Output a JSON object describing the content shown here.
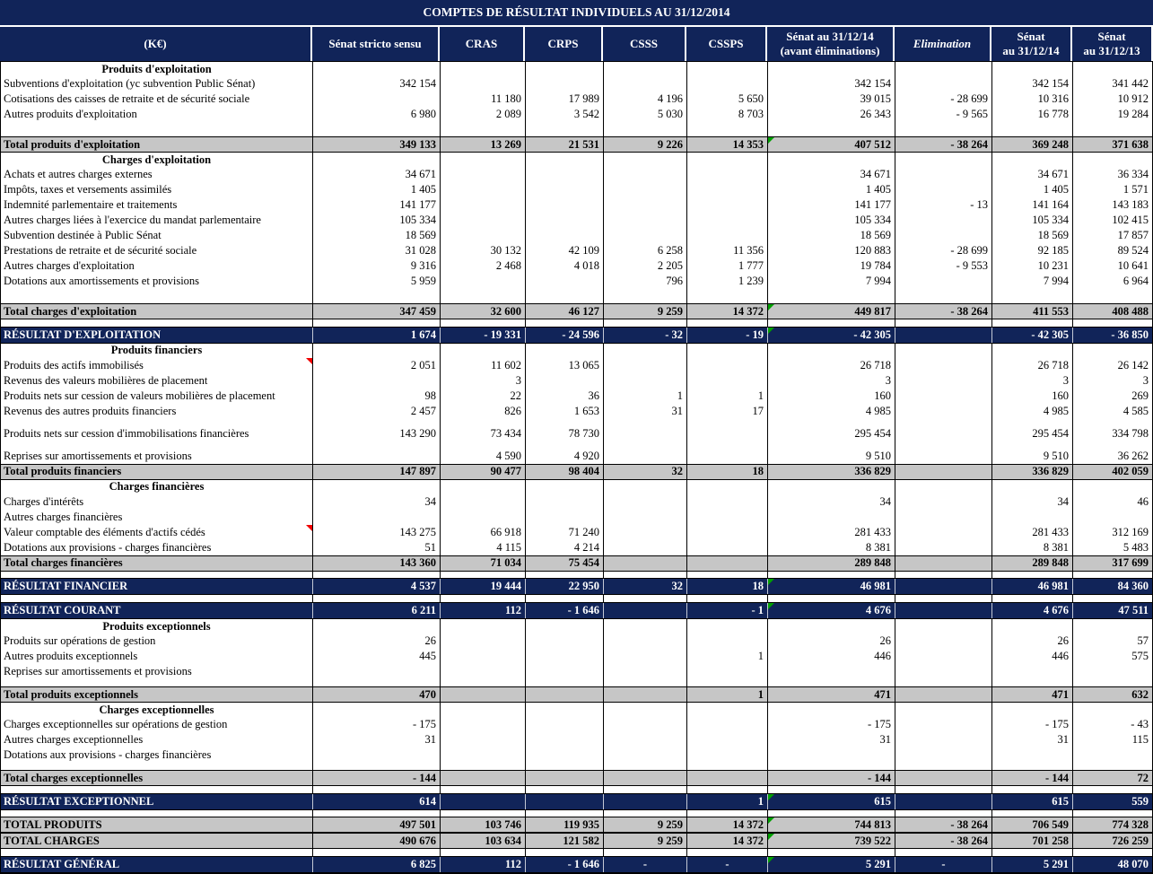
{
  "title": "COMPTES DE RÉSULTAT INDIVIDUELS AU 31/12/2014",
  "unit_label": "(K€)",
  "colors": {
    "navy": "#112459",
    "total_gray": "#c6c6c6",
    "text_on_navy": "#ffffff",
    "green_marker": "#00a000",
    "red_marker": "#f00000"
  },
  "columns": [
    {
      "key": "label",
      "label": "(K€)"
    },
    {
      "key": "senat_stricto_sensu",
      "label": "Sénat stricto sensu"
    },
    {
      "key": "cras",
      "label": "CRAS"
    },
    {
      "key": "crps",
      "label": "CRPS"
    },
    {
      "key": "csss",
      "label": "CSSS"
    },
    {
      "key": "cssps",
      "label": "CSSPS"
    },
    {
      "key": "senat_31_12_14_avant_eliminations",
      "label": "Sénat au 31/12/14\n(avant éliminations)"
    },
    {
      "key": "elimination",
      "label": "Elimination",
      "italic": true
    },
    {
      "key": "senat_31_12_14",
      "label": "Sénat\nau 31/12/14"
    },
    {
      "key": "senat_31_12_13",
      "label": "Sénat\nau 31/12/13"
    }
  ],
  "rows": [
    {
      "type": "section",
      "label": "Produits d'exploitation"
    },
    {
      "type": "data",
      "label": "Subventions d'exploitation (yc subvention Public Sénat)",
      "values": [
        "342 154",
        "",
        "",
        "",
        "",
        "342 154",
        "",
        "342 154",
        "341 442"
      ]
    },
    {
      "type": "data",
      "label": "Cotisations des caisses de retraite et de sécurité sociale",
      "values": [
        "",
        "11 180",
        "17 989",
        "4 196",
        "5 650",
        "39 015",
        "- 28 699",
        "10 316",
        "10 912"
      ]
    },
    {
      "type": "data",
      "label": "Autres produits d'exploitation",
      "values": [
        "6 980",
        "2 089",
        "3 542",
        "5 030",
        "8 703",
        "26 343",
        "- 9 565",
        "16 778",
        "19 284"
      ]
    },
    {
      "type": "blank"
    },
    {
      "type": "total",
      "label": "Total produits d'exploitation",
      "green_marker": true,
      "values": [
        "349 133",
        "13 269",
        "21 531",
        "9 226",
        "14 353",
        "407 512",
        "- 38 264",
        "369 248",
        "371 638"
      ]
    },
    {
      "type": "section",
      "label": "Charges d'exploitation"
    },
    {
      "type": "data",
      "label": "Achats et autres charges externes",
      "values": [
        "34 671",
        "",
        "",
        "",
        "",
        "34 671",
        "",
        "34 671",
        "36 334"
      ]
    },
    {
      "type": "data",
      "label": "Impôts, taxes et versements assimilés",
      "values": [
        "1 405",
        "",
        "",
        "",
        "",
        "1 405",
        "",
        "1 405",
        "1 571"
      ]
    },
    {
      "type": "data",
      "label": "Indemnité parlementaire et traitements",
      "values": [
        "141 177",
        "",
        "",
        "",
        "",
        "141 177",
        "- 13",
        "141 164",
        "143 183"
      ]
    },
    {
      "type": "data",
      "label": "Autres charges liées à l'exercice du mandat parlementaire",
      "values": [
        "105 334",
        "",
        "",
        "",
        "",
        "105 334",
        "",
        "105 334",
        "102 415"
      ]
    },
    {
      "type": "data",
      "label": "Subvention destinée à Public Sénat",
      "values": [
        "18 569",
        "",
        "",
        "",
        "",
        "18 569",
        "",
        "18 569",
        "17 857"
      ]
    },
    {
      "type": "data",
      "label": "Prestations de retraite et de sécurité sociale",
      "values": [
        "31 028",
        "30 132",
        "42 109",
        "6 258",
        "11 356",
        "120 883",
        "- 28 699",
        "92 185",
        "89 524"
      ]
    },
    {
      "type": "data",
      "label": "Autres charges d'exploitation",
      "values": [
        "9 316",
        "2 468",
        "4 018",
        "2 205",
        "1 777",
        "19 784",
        "- 9 553",
        "10 231",
        "10 641"
      ]
    },
    {
      "type": "data",
      "label": "Dotations aux amortissements et provisions",
      "values": [
        "5 959",
        "",
        "",
        "796",
        "1 239",
        "7 994",
        "",
        "7 994",
        "6 964"
      ]
    },
    {
      "type": "blank"
    },
    {
      "type": "total",
      "label": "Total charges d'exploitation",
      "green_marker": true,
      "values": [
        "347 459",
        "32 600",
        "46 127",
        "9 259",
        "14 372",
        "449 817",
        "- 38 264",
        "411 553",
        "408 488"
      ]
    },
    {
      "type": "spacer"
    },
    {
      "type": "result",
      "label": "RÉSULTAT D'EXPLOITATION",
      "green_marker": true,
      "values": [
        "1 674",
        "- 19 331",
        "- 24 596",
        "- 32",
        "- 19",
        "- 42 305",
        "",
        "- 42 305",
        "- 36 850"
      ]
    },
    {
      "type": "section",
      "label": "Produits financiers"
    },
    {
      "type": "data",
      "label": "Produits des actifs immobilisés",
      "red_marker": true,
      "values": [
        "2 051",
        "11 602",
        "13 065",
        "",
        "",
        "26 718",
        "",
        "26 718",
        "26 142"
      ]
    },
    {
      "type": "data",
      "label": "Revenus des valeurs mobilières de placement",
      "values": [
        "",
        "3",
        "",
        "",
        "",
        "3",
        "",
        "3",
        "3"
      ]
    },
    {
      "type": "data",
      "label": "Produits nets sur cession de valeurs mobilières de placement",
      "values": [
        "98",
        "22",
        "36",
        "1",
        "1",
        "160",
        "",
        "160",
        "269"
      ]
    },
    {
      "type": "data",
      "label": "Revenus des autres produits financiers",
      "values": [
        "2 457",
        "826",
        "1 653",
        "31",
        "17",
        "4 985",
        "",
        "4 985",
        "4 585"
      ]
    },
    {
      "type": "gap"
    },
    {
      "type": "data",
      "label": "Produits nets sur cession d'immobilisations financières",
      "values": [
        "143 290",
        "73 434",
        "78 730",
        "",
        "",
        "295 454",
        "",
        "295 454",
        "334 798"
      ]
    },
    {
      "type": "gap"
    },
    {
      "type": "data",
      "label": "Reprises sur amortissements et provisions",
      "values": [
        "",
        "4 590",
        "4 920",
        "",
        "",
        "9 510",
        "",
        "9 510",
        "36 262"
      ]
    },
    {
      "type": "total",
      "label": "Total produits financiers",
      "values": [
        "147 897",
        "90 477",
        "98 404",
        "32",
        "18",
        "336 829",
        "",
        "336 829",
        "402 059"
      ]
    },
    {
      "type": "section",
      "label": "Charges financières"
    },
    {
      "type": "data",
      "label": "Charges d'intérêts",
      "values": [
        "34",
        "",
        "",
        "",
        "",
        "34",
        "",
        "34",
        "46"
      ]
    },
    {
      "type": "data",
      "label": "Autres charges financières",
      "values": [
        "",
        "",
        "",
        "",
        "",
        "",
        "",
        "",
        ""
      ]
    },
    {
      "type": "data",
      "label": "Valeur comptable des éléments d'actifs cédés",
      "red_marker": true,
      "values": [
        "143 275",
        "66 918",
        "71 240",
        "",
        "",
        "281 433",
        "",
        "281 433",
        "312 169"
      ]
    },
    {
      "type": "data",
      "label": "Dotations aux provisions - charges financières",
      "values": [
        "51",
        "4 115",
        "4 214",
        "",
        "",
        "8 381",
        "",
        "8 381",
        "5 483"
      ]
    },
    {
      "type": "total",
      "label": "Total charges financières",
      "values": [
        "143 360",
        "71 034",
        "75 454",
        "",
        "",
        "289 848",
        "",
        "289 848",
        "317 699"
      ]
    },
    {
      "type": "spacer"
    },
    {
      "type": "result",
      "label": "RÉSULTAT FINANCIER",
      "green_marker": true,
      "values": [
        "4 537",
        "19 444",
        "22 950",
        "32",
        "18",
        "46 981",
        "",
        "46 981",
        "84 360"
      ]
    },
    {
      "type": "spacer"
    },
    {
      "type": "result",
      "label": "RÉSULTAT COURANT",
      "green_marker": true,
      "values": [
        "6 211",
        "112",
        "- 1 646",
        "",
        "- 1",
        "4 676",
        "",
        "4 676",
        "47 511"
      ]
    },
    {
      "type": "section",
      "label": "Produits exceptionnels"
    },
    {
      "type": "data",
      "label": "Produits sur opérations de gestion",
      "values": [
        "26",
        "",
        "",
        "",
        "",
        "26",
        "",
        "26",
        "57"
      ]
    },
    {
      "type": "data",
      "label": "Autres produits exceptionnels",
      "values": [
        "445",
        "",
        "",
        "",
        "1",
        "446",
        "",
        "446",
        "575"
      ]
    },
    {
      "type": "data",
      "label": "Reprises sur amortissements et provisions",
      "values": [
        "",
        "",
        "",
        "",
        "",
        "",
        "",
        "",
        ""
      ]
    },
    {
      "type": "gap"
    },
    {
      "type": "total",
      "label": "Total produits exceptionnels",
      "values": [
        "470",
        "",
        "",
        "",
        "1",
        "471",
        "",
        "471",
        "632"
      ]
    },
    {
      "type": "section",
      "label": "Charges exceptionnelles"
    },
    {
      "type": "data",
      "label": "Charges exceptionnelles sur opérations de gestion",
      "values": [
        "- 175",
        "",
        "",
        "",
        "",
        "- 175",
        "",
        "- 175",
        "- 43"
      ]
    },
    {
      "type": "data",
      "label": "Autres charges exceptionnelles",
      "values": [
        "31",
        "",
        "",
        "",
        "",
        "31",
        "",
        "31",
        "115"
      ]
    },
    {
      "type": "data",
      "label": "Dotations aux provisions - charges financières",
      "values": [
        "",
        "",
        "",
        "",
        "",
        "",
        "",
        "",
        ""
      ]
    },
    {
      "type": "gap"
    },
    {
      "type": "total",
      "label": "Total charges exceptionnelles",
      "values": [
        "- 144",
        "",
        "",
        "",
        "",
        "- 144",
        "",
        "- 144",
        "72"
      ]
    },
    {
      "type": "spacer"
    },
    {
      "type": "result",
      "label": "RÉSULTAT EXCEPTIONNEL",
      "green_marker": true,
      "values": [
        "614",
        "",
        "",
        "",
        "1",
        "615",
        "",
        "615",
        "559"
      ]
    },
    {
      "type": "spacer"
    },
    {
      "type": "total",
      "label": "TOTAL PRODUITS",
      "green_marker": true,
      "values": [
        "497 501",
        "103 746",
        "119 935",
        "9 259",
        "14 372",
        "744 813",
        "- 38 264",
        "706 549",
        "774 328"
      ]
    },
    {
      "type": "total",
      "label": "TOTAL CHARGES",
      "green_marker": true,
      "values": [
        "490 676",
        "103 634",
        "121 582",
        "9 259",
        "14 372",
        "739 522",
        "- 38 264",
        "701 258",
        "726 259"
      ]
    },
    {
      "type": "spacer"
    },
    {
      "type": "result",
      "label": "RÉSULTAT GÉNÉRAL",
      "green_marker": true,
      "values": [
        "6 825",
        "112",
        "- 1 646",
        "-",
        "-",
        "5 291",
        "-",
        "5 291",
        "48 070"
      ]
    }
  ]
}
